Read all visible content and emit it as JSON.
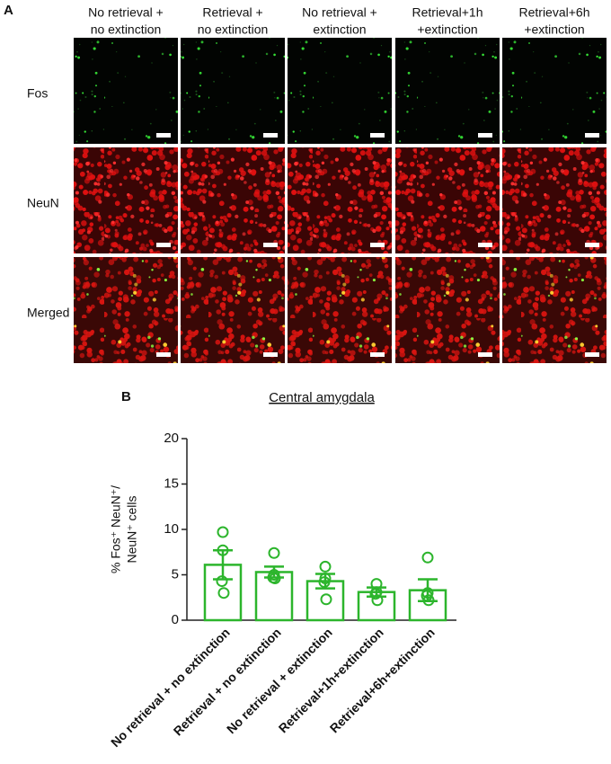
{
  "panel_a": {
    "label": "A",
    "columns": [
      [
        "No retrieval +",
        "no extinction"
      ],
      [
        "Retrieval +",
        "no extinction"
      ],
      [
        "No retrieval +",
        "extinction"
      ],
      [
        "Retrieval+1h",
        "+extinction"
      ],
      [
        "Retrieval+6h",
        "+extinction"
      ]
    ],
    "rows": [
      "Fos",
      "NeuN",
      "Merged"
    ]
  },
  "chart_data": {
    "type": "bar",
    "panel_label": "B",
    "title": "Central amygdala",
    "ylabel": [
      "% Fos⁺ NeuN⁺/",
      "NeuN⁺ cells"
    ],
    "categories": [
      "No retrieval + no extinction",
      "Retrieval + no extinction",
      "No retrieval + extinction",
      "Retrieval+1h+extinction",
      "Retrieval+6h+extinction"
    ],
    "series": [
      {
        "color": "#2cb52c",
        "values": [
          6.1,
          5.3,
          4.3,
          3.1,
          3.3
        ],
        "errors": [
          1.6,
          0.6,
          0.8,
          0.5,
          1.2
        ],
        "points": [
          [
            9.7,
            7.7,
            4.3,
            3.0
          ],
          [
            7.4,
            5.0,
            4.7,
            4.6
          ],
          [
            5.9,
            4.6,
            4.2,
            2.3
          ],
          [
            4.0,
            3.1,
            2.9,
            2.2
          ],
          [
            6.9,
            3.0,
            2.7,
            2.2
          ]
        ]
      }
    ],
    "ylim": [
      0,
      20
    ],
    "yticks": [
      0,
      5,
      10,
      15,
      20
    ]
  }
}
